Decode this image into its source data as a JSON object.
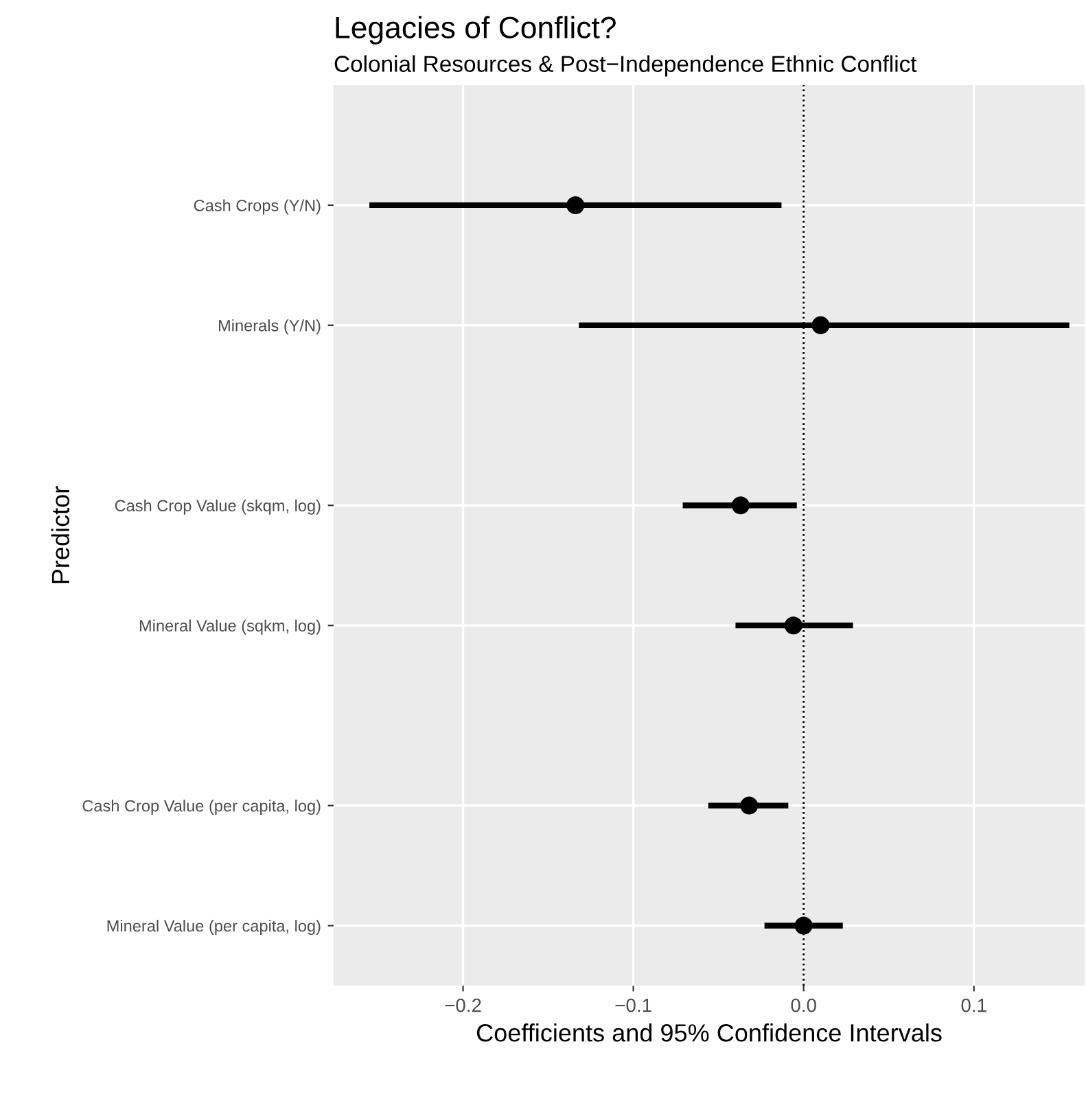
{
  "chart_data": {
    "type": "scatter",
    "orientation": "horizontal",
    "title": "Legacies of Conflict?",
    "subtitle": "Colonial Resources & Post−Independence Ethnic Conflict",
    "xlabel": "Coefficients and 95% Confidence Intervals",
    "ylabel": "Predictor",
    "categories": [
      null,
      "Cash Crops (Y/N)",
      null,
      "Minerals (Y/N)",
      null,
      null,
      "Cash Crop Value (skqm, log)",
      null,
      "Mineral Value (sqkm, log)",
      null,
      null,
      "Cash Crop Value (per capita, log)",
      null,
      "Mineral Value (per capita, log)"
    ],
    "values": [
      null,
      -0.134,
      null,
      0.01,
      null,
      null,
      -0.037,
      null,
      -0.006,
      null,
      null,
      -0.032,
      null,
      0.0
    ],
    "errors": [
      null,
      [
        -0.255,
        -0.013
      ],
      null,
      [
        -0.132,
        0.156
      ],
      null,
      null,
      [
        -0.071,
        -0.004
      ],
      null,
      [
        -0.04,
        0.029
      ],
      null,
      null,
      [
        -0.056,
        -0.009
      ],
      null,
      [
        -0.023,
        0.023
      ]
    ],
    "color": "#000000",
    "marker": "circle",
    "xlim": [
      -0.276,
      0.165
    ],
    "xticks": [
      {
        "value": -0.2,
        "label": "−0.2"
      },
      {
        "value": -0.1,
        "label": "−0.1"
      },
      {
        "value": 0.0,
        "label": "0.0"
      },
      {
        "value": 0.1,
        "label": "0.1"
      }
    ],
    "ref_lines": [
      {
        "axis": "x",
        "value": 0,
        "line_style": "dotted",
        "color": "#000000"
      }
    ],
    "grid": true
  }
}
